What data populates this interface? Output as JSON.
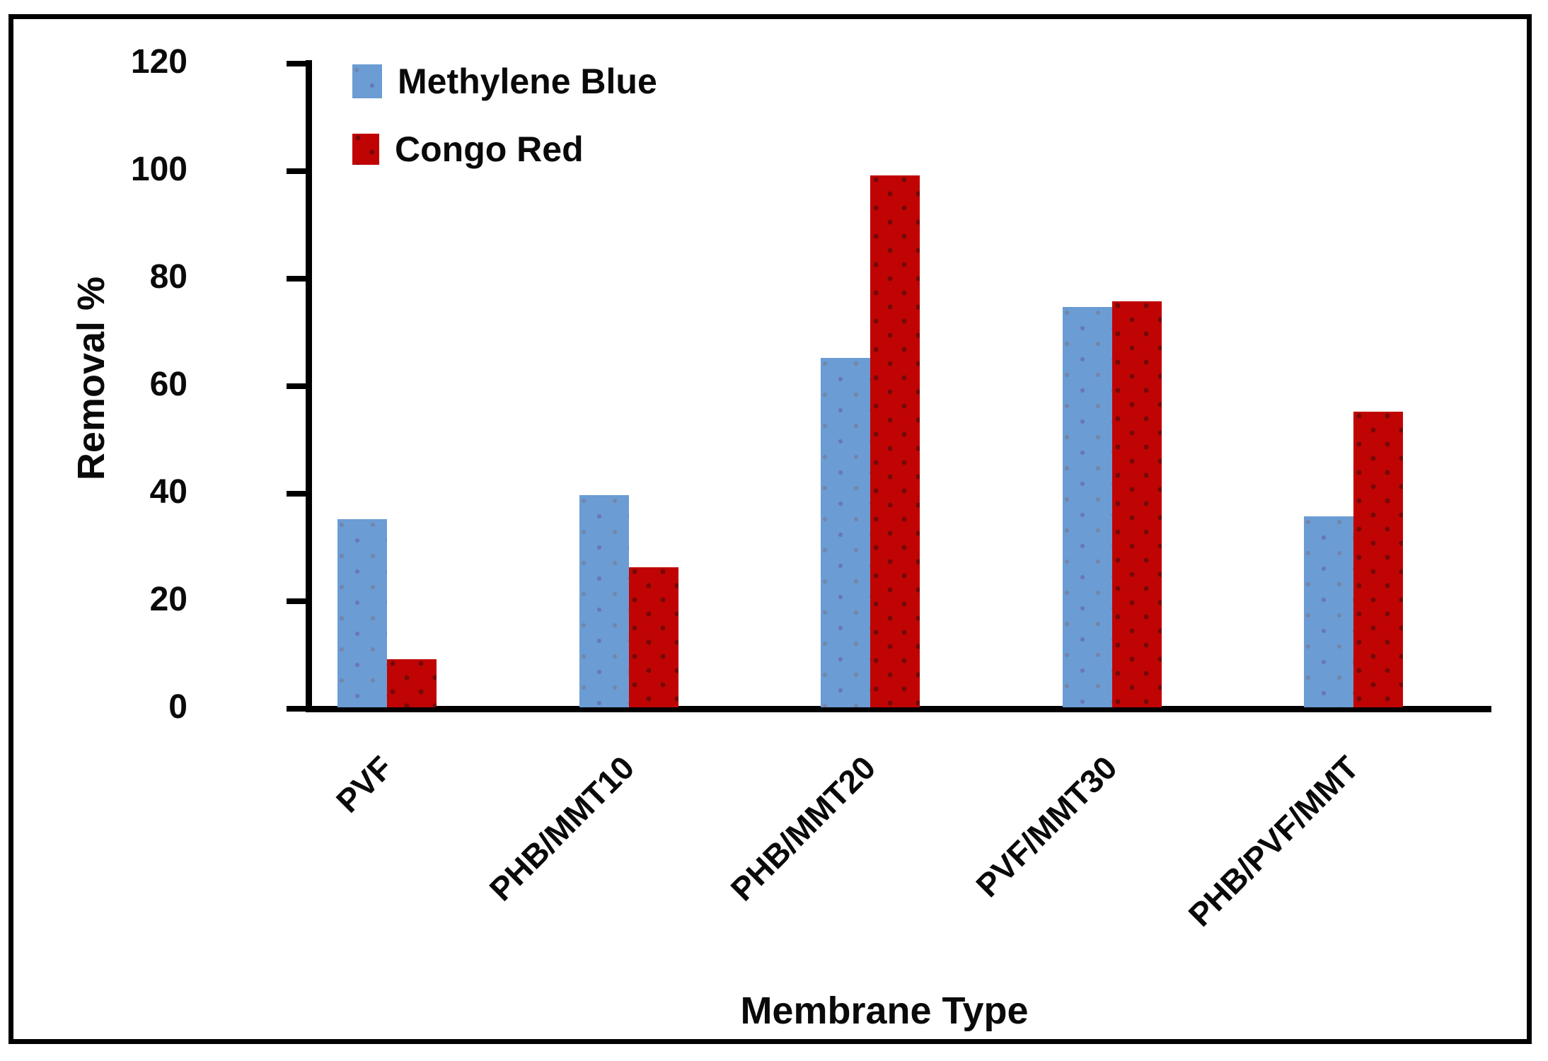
{
  "chart_data": {
    "type": "bar",
    "title": "",
    "xlabel": "Membrane Type",
    "ylabel": "Removal %",
    "categories": [
      "PVF",
      "PHB/MMT10",
      "PHB/MMT20",
      "PVF/MMT30",
      "PHB/PVF/MMT"
    ],
    "series": [
      {
        "name": "Methylene Blue",
        "color": "#6b9cd3",
        "values": [
          35,
          39.5,
          65,
          74.5,
          35.5
        ]
      },
      {
        "name": "Congo Red",
        "color": "#c00404",
        "values": [
          9,
          26,
          99,
          75.5,
          55
        ]
      }
    ],
    "y_ticks": [
      0,
      20,
      40,
      60,
      80,
      100,
      120
    ],
    "ylim": [
      0,
      120
    ],
    "grid": false,
    "legend_position": "top-left-inside",
    "bar_texture": "dotted"
  }
}
